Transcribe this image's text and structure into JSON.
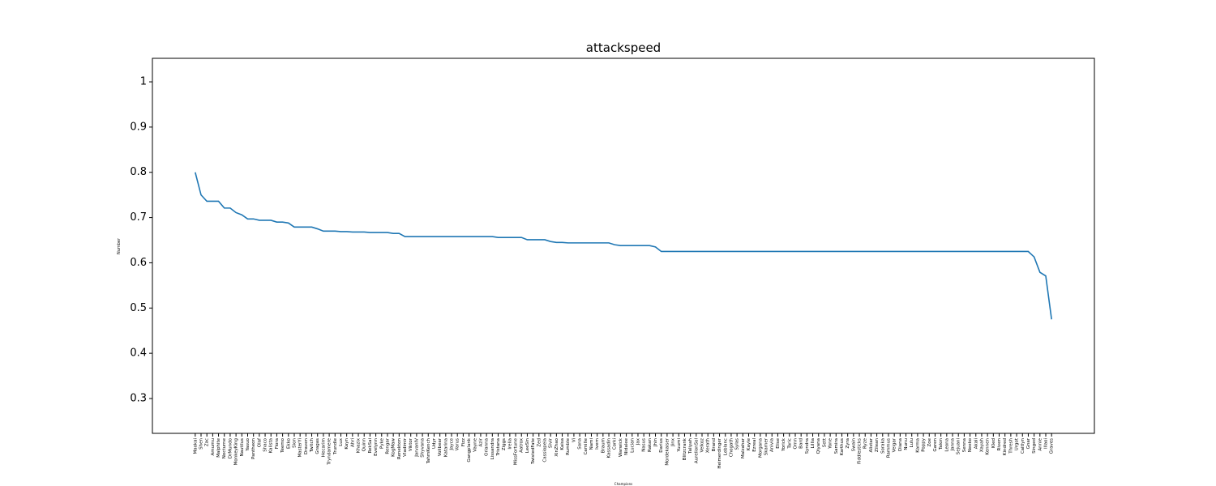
{
  "chart_data": {
    "type": "line",
    "title": "attackspeed",
    "x_label": "Champions",
    "y_label": "Number",
    "categories": [
      "Maokai",
      "Shen",
      "Zac",
      "Amumu",
      "Malphite",
      "Nocturne",
      "DrMundo",
      "MonkeyKing",
      "Nautilus",
      "Yasuo",
      "Pantheon",
      "Olaf",
      "Shaco",
      "Kalista",
      "Fiora",
      "Teemo",
      "Ekko",
      "Sion",
      "MasterYi",
      "Draven",
      "Twitch",
      "Gragas",
      "Hecarim",
      "Tryndamere",
      "Trundle",
      "Lux",
      "Kayn",
      "Ahri",
      "Khazix",
      "Quinn",
      "RekSai",
      "Evelynn",
      "Pyke",
      "Rengar",
      "KogMaw",
      "Renekton",
      "Vladimir",
      "Viktor",
      "JarvanIV",
      "Shyvana",
      "TahmKench",
      "Udyr",
      "Volibear",
      "Katarina",
      "Jayce",
      "Varus",
      "Fizz",
      "Gangplank",
      "Vayne",
      "Azir",
      "Orianna",
      "Lissandra",
      "Tristana",
      "Ziggs",
      "Irelia",
      "MissFortune",
      "Aatrox",
      "LeeSin",
      "TwistedFate",
      "Zed",
      "Cassiopeia",
      "Sivir",
      "XinZhao",
      "Kaisa",
      "Rumble",
      "Vi",
      "Sona",
      "Camille",
      "Nami",
      "Ivern",
      "Braum",
      "Kassadin",
      "Corki",
      "Warwick",
      "Nidalee",
      "Lucian",
      "Jax",
      "Nasus",
      "Rakan",
      "Jhin",
      "Darius",
      "Mordekaiser",
      "Jinx",
      "Yuumi",
      "Blitzcrank",
      "Taliyah",
      "AurelionSol",
      "Velkoz",
      "Xerath",
      "Brand",
      "Heimerdinger",
      "Leblanc",
      "Chogath",
      "Sylas",
      "Malzahar",
      "Kayle",
      "Ezreal",
      "Morgana",
      "Skarner",
      "Anivia",
      "Elise",
      "Yorick",
      "Taric",
      "Ornn",
      "Bard",
      "Syndra",
      "Lillia",
      "Qiyana",
      "Sett",
      "Yone",
      "Samira",
      "Karthus",
      "Zyra",
      "Swain",
      "Fiddlesticks",
      "Ryze",
      "Alistar",
      "Zilean",
      "Soraka",
      "Rammus",
      "Veigar",
      "Diana",
      "Nunu",
      "Lulu",
      "Karma",
      "Poppy",
      "Zoe",
      "Garen",
      "Talon",
      "Leona",
      "Janna",
      "Sejuani",
      "Senna",
      "Neeko",
      "Akali",
      "Xayah",
      "Kennen",
      "Kled",
      "Riven",
      "Kindred",
      "Thresh",
      "Urgot",
      "Caitlyn",
      "Gnar",
      "Singed",
      "Annie",
      "Illaoi",
      "Graves"
    ],
    "series": [
      {
        "color": "#1f77b4",
        "values": [
          0.8,
          0.75,
          0.736,
          0.736,
          0.736,
          0.721,
          0.721,
          0.711,
          0.706,
          0.697,
          0.697,
          0.694,
          0.694,
          0.694,
          0.69,
          0.69,
          0.688,
          0.679,
          0.679,
          0.679,
          0.679,
          0.675,
          0.67,
          0.67,
          0.67,
          0.669,
          0.669,
          0.668,
          0.668,
          0.668,
          0.667,
          0.667,
          0.667,
          0.667,
          0.665,
          0.665,
          0.658,
          0.658,
          0.658,
          0.658,
          0.658,
          0.658,
          0.658,
          0.658,
          0.658,
          0.658,
          0.658,
          0.658,
          0.658,
          0.658,
          0.658,
          0.658,
          0.656,
          0.656,
          0.656,
          0.656,
          0.656,
          0.651,
          0.651,
          0.651,
          0.651,
          0.647,
          0.645,
          0.645,
          0.644,
          0.644,
          0.644,
          0.644,
          0.644,
          0.644,
          0.644,
          0.644,
          0.64,
          0.638,
          0.638,
          0.638,
          0.638,
          0.638,
          0.638,
          0.635,
          0.625,
          0.625,
          0.625,
          0.625,
          0.625,
          0.625,
          0.625,
          0.625,
          0.625,
          0.625,
          0.625,
          0.625,
          0.625,
          0.625,
          0.625,
          0.625,
          0.625,
          0.625,
          0.625,
          0.625,
          0.625,
          0.625,
          0.625,
          0.625,
          0.625,
          0.625,
          0.625,
          0.625,
          0.625,
          0.625,
          0.625,
          0.625,
          0.625,
          0.625,
          0.625,
          0.625,
          0.625,
          0.625,
          0.625,
          0.625,
          0.625,
          0.625,
          0.625,
          0.625,
          0.625,
          0.625,
          0.625,
          0.625,
          0.625,
          0.625,
          0.625,
          0.625,
          0.625,
          0.625,
          0.625,
          0.625,
          0.625,
          0.625,
          0.625,
          0.625,
          0.625,
          0.625,
          0.625,
          0.625,
          0.613,
          0.579,
          0.571,
          0.475
        ]
      }
    ],
    "ylim": [
      0.223,
      1.052
    ],
    "yticks": [
      0.3,
      0.4,
      0.5,
      0.6,
      0.7,
      0.8,
      0.9,
      1.0
    ]
  }
}
